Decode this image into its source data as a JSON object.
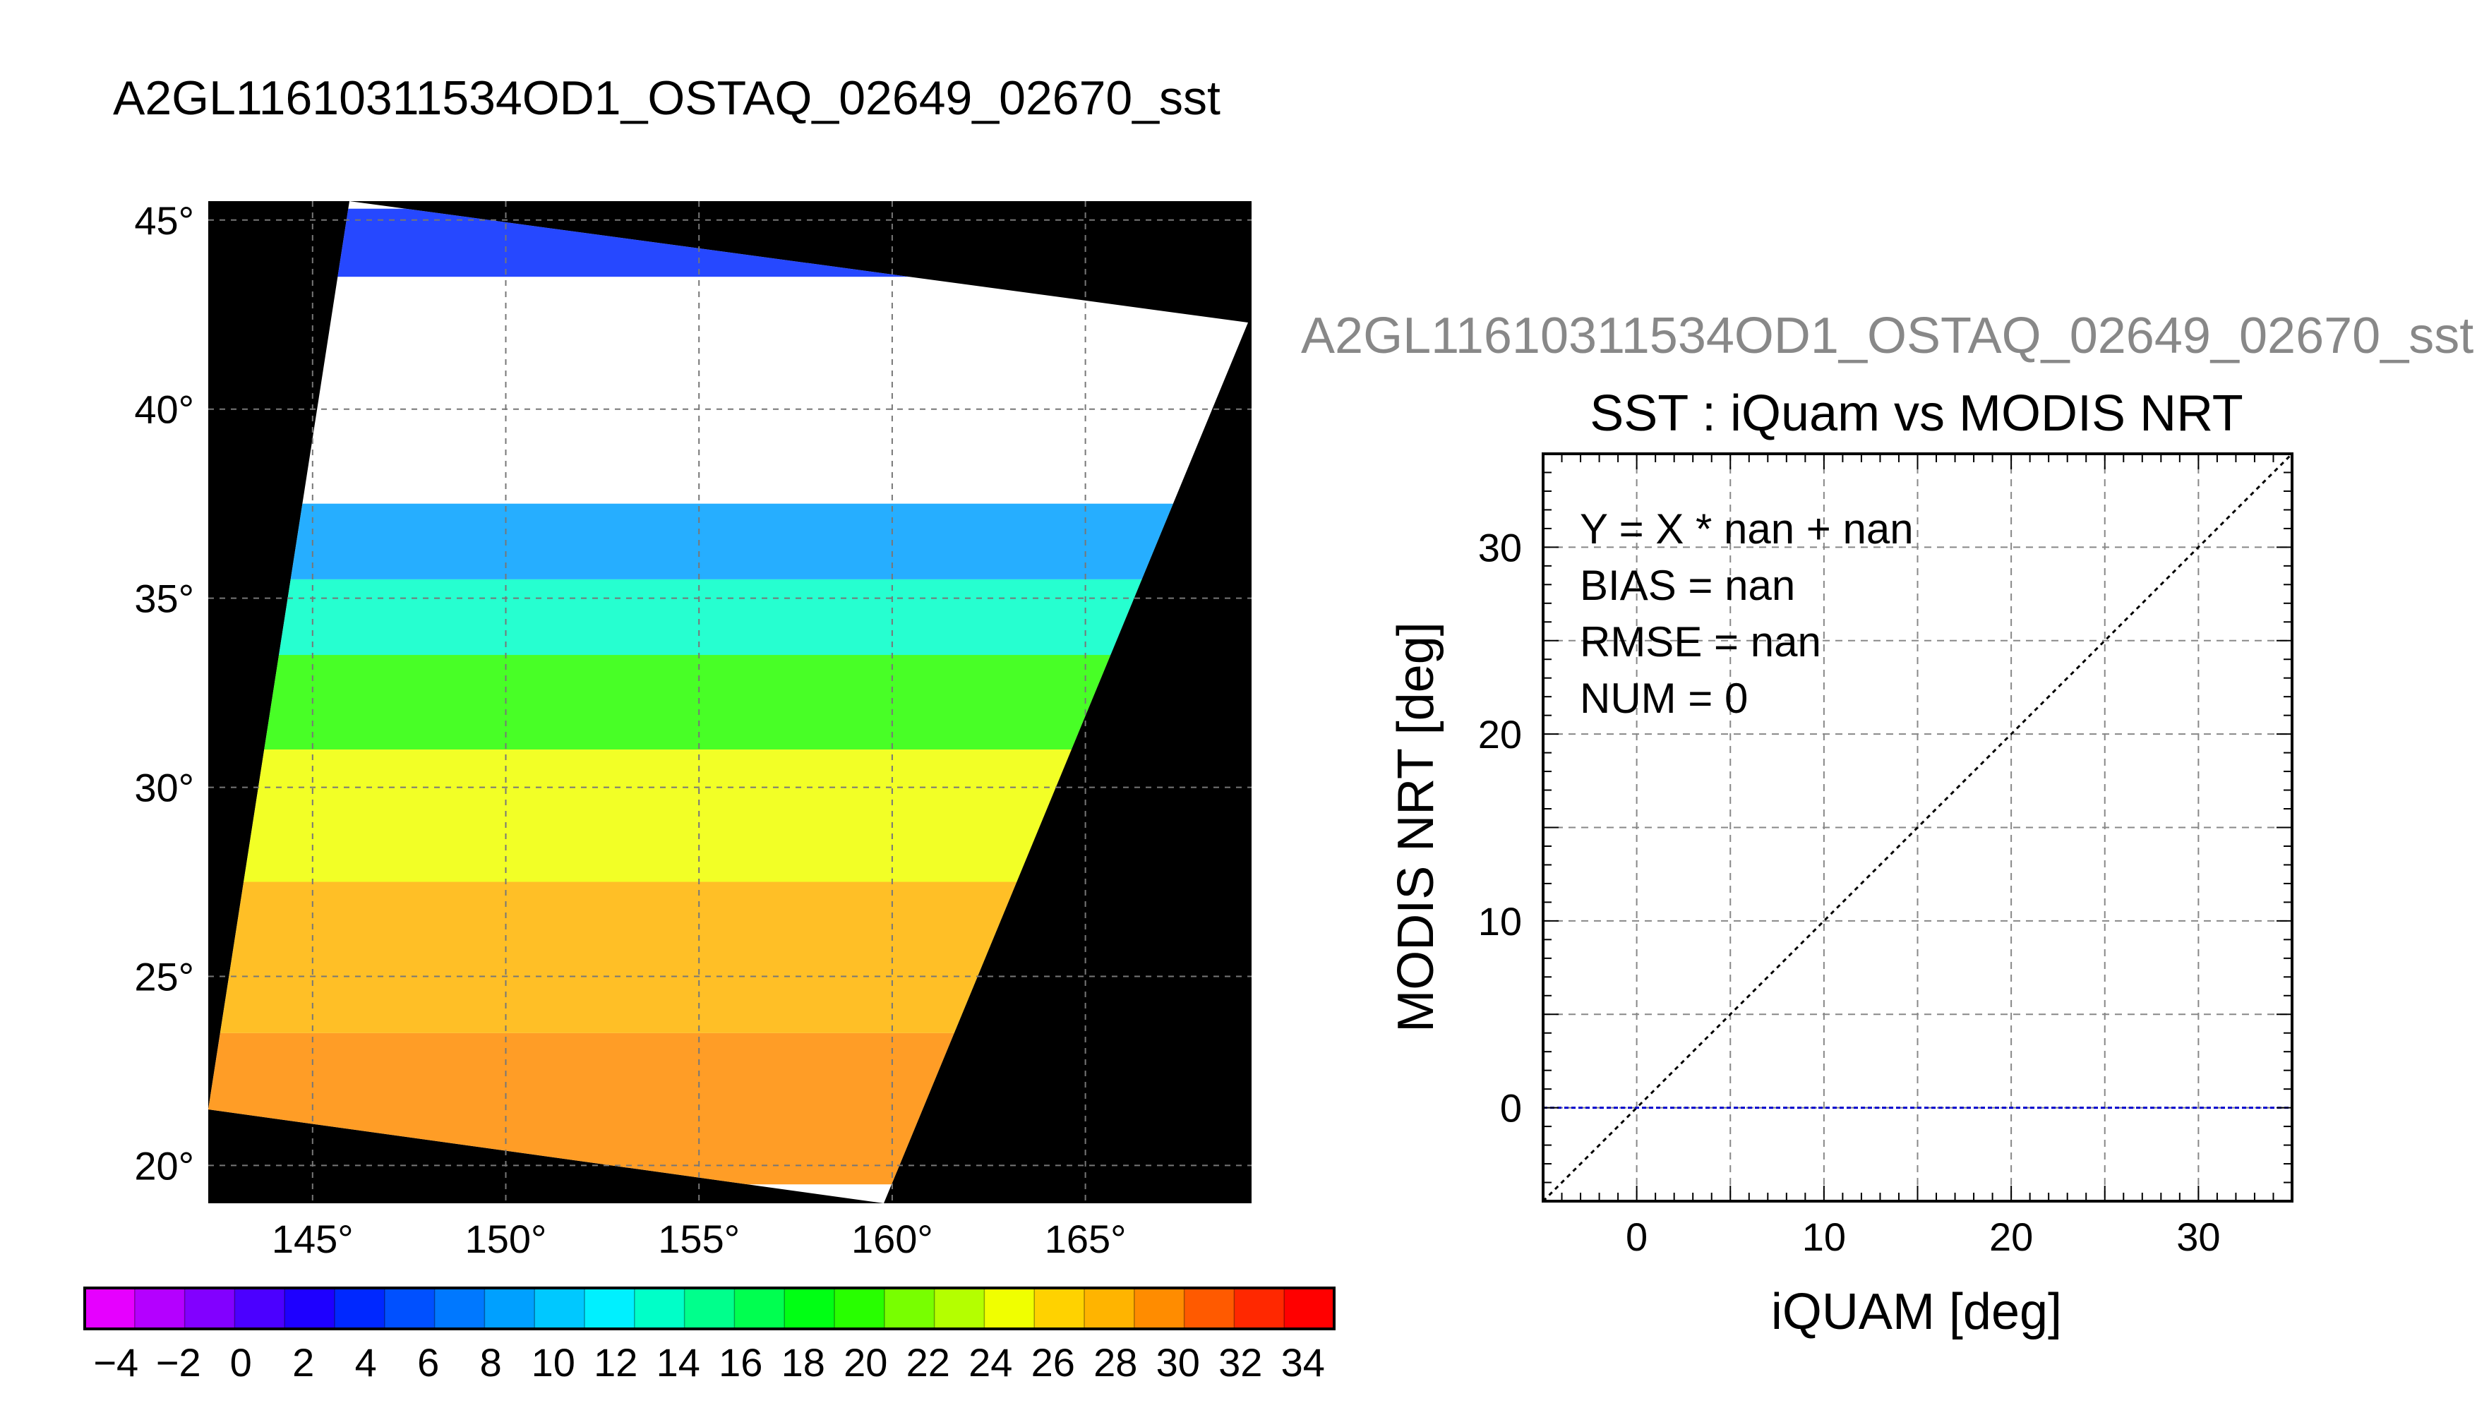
{
  "page_title": "A2GL11610311534OD1_OSTAQ_02649_02670_sst",
  "chart_data": [
    {
      "type": "heatmap",
      "subtype": "geographic-map",
      "title": "",
      "x_ticks": [
        "145°",
        "150°",
        "155°",
        "160°",
        "165°"
      ],
      "y_ticks": [
        "45°",
        "40°",
        "35°",
        "30°",
        "25°",
        "20°"
      ],
      "xlim": [
        142.3,
        169.3
      ],
      "ylim": [
        19.0,
        45.5
      ],
      "grid": true,
      "background_color": "#000000",
      "swath_color": "#ffffff",
      "sst_bands": [
        {
          "lat_from": 19.5,
          "lat_to": 23.5,
          "value_c": 29
        },
        {
          "lat_from": 23.5,
          "lat_to": 27.5,
          "value_c": 27
        },
        {
          "lat_from": 27.5,
          "lat_to": 31.0,
          "value_c": 25
        },
        {
          "lat_from": 31.0,
          "lat_to": 33.5,
          "value_c": 19
        },
        {
          "lat_from": 33.5,
          "lat_to": 35.5,
          "value_c": 14
        },
        {
          "lat_from": 35.5,
          "lat_to": 37.5,
          "value_c": 8
        },
        {
          "lat_from": 43.5,
          "lat_to": 45.3,
          "value_c": 4
        }
      ]
    },
    {
      "type": "colorbar",
      "tick_labels": [
        "−4",
        "−2",
        "0",
        "2",
        "4",
        "6",
        "8",
        "10",
        "12",
        "14",
        "16",
        "18",
        "20",
        "22",
        "24",
        "26",
        "28",
        "30",
        "32",
        "34"
      ],
      "min": -5,
      "max": 35,
      "step": 2,
      "colors": [
        "#e600ff",
        "#b400ff",
        "#8200ff",
        "#4b00ff",
        "#1e00ff",
        "#0028ff",
        "#0050ff",
        "#0078ff",
        "#00a0ff",
        "#00c8ff",
        "#00f0ff",
        "#00ffc8",
        "#00ff8c",
        "#00ff50",
        "#00ff14",
        "#28ff00",
        "#78ff00",
        "#b4ff00",
        "#f0ff00",
        "#ffd200",
        "#ffb400",
        "#ff8c00",
        "#ff5a00",
        "#ff2800",
        "#ff0000"
      ]
    },
    {
      "type": "scatter",
      "super_title": "A2GL11610311534OD1_OSTAQ_02649_02670_sst",
      "title": "SST : iQuam vs MODIS NRT",
      "xlabel": "iQUAM [deg]",
      "ylabel": "MODIS NRT [deg]",
      "xlim": [
        -5,
        35
      ],
      "ylim": [
        -5,
        35
      ],
      "x_ticks": [
        0,
        10,
        20,
        30
      ],
      "y_ticks": [
        0,
        10,
        20,
        30
      ],
      "grid_step": 5,
      "grid": true,
      "points": [],
      "reference_lines": [
        {
          "name": "",
          "kind": "identity",
          "color": "#000000"
        },
        {
          "name": "",
          "kind": "y=0",
          "color": "#0000cc"
        }
      ],
      "stats": {
        "equation": "Y = X * nan + nan",
        "bias": "BIAS = nan",
        "rmse": "RMSE = nan",
        "num": "NUM = 0"
      }
    }
  ]
}
